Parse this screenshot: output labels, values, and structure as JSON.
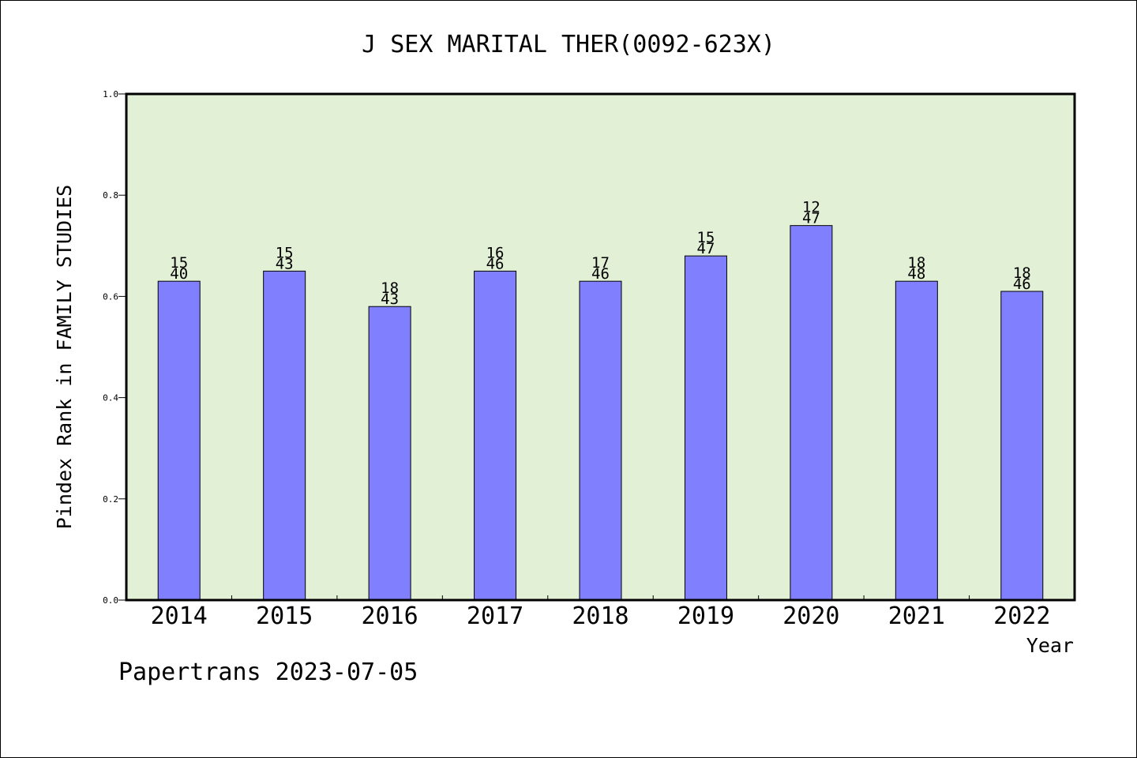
{
  "chart_data": {
    "type": "bar",
    "title": "J SEX MARITAL THER(0092-623X)",
    "xlabel": "Year",
    "ylabel": "Pindex Rank in FAMILY STUDIES",
    "categories": [
      "2014",
      "2015",
      "2016",
      "2017",
      "2018",
      "2019",
      "2020",
      "2021",
      "2022"
    ],
    "values": [
      0.63,
      0.65,
      0.58,
      0.65,
      0.63,
      0.68,
      0.74,
      0.63,
      0.61
    ],
    "rank_labels": [
      "15",
      "15",
      "18",
      "16",
      "17",
      "15",
      "12",
      "18",
      "18"
    ],
    "total_labels": [
      "40",
      "43",
      "43",
      "46",
      "46",
      "47",
      "47",
      "48",
      "46"
    ],
    "ylim": [
      0,
      1
    ],
    "yticks": [
      "0.0",
      "0.2",
      "0.4",
      "0.6",
      "0.8",
      "1.0"
    ],
    "grid": false,
    "colors": {
      "bar": "#8080ff",
      "plot_background": "#e2f0d6",
      "axis": "#000000"
    }
  },
  "footer": {
    "note": "Papertrans 2023-07-05"
  }
}
